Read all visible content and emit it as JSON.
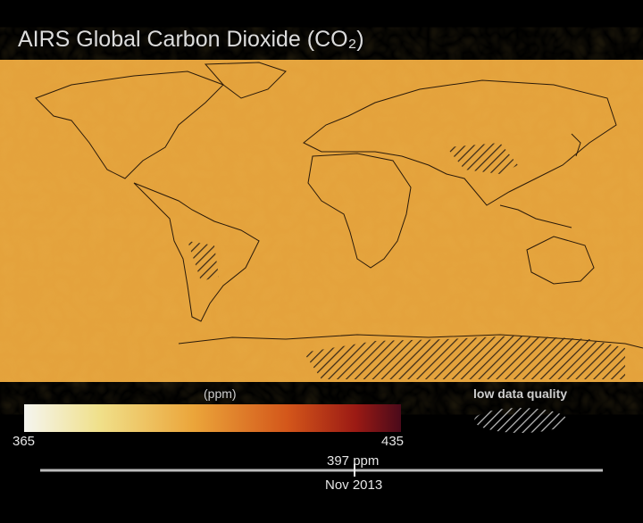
{
  "header": {
    "title": "AIRS Global Carbon Dioxide  (CO₂)"
  },
  "colorbar": {
    "unit": "(ppm)",
    "min": "365",
    "max": "435"
  },
  "legend": {
    "label": "low data quality"
  },
  "timeline": {
    "readout": "397 ppm",
    "date": "Nov 2013"
  }
}
